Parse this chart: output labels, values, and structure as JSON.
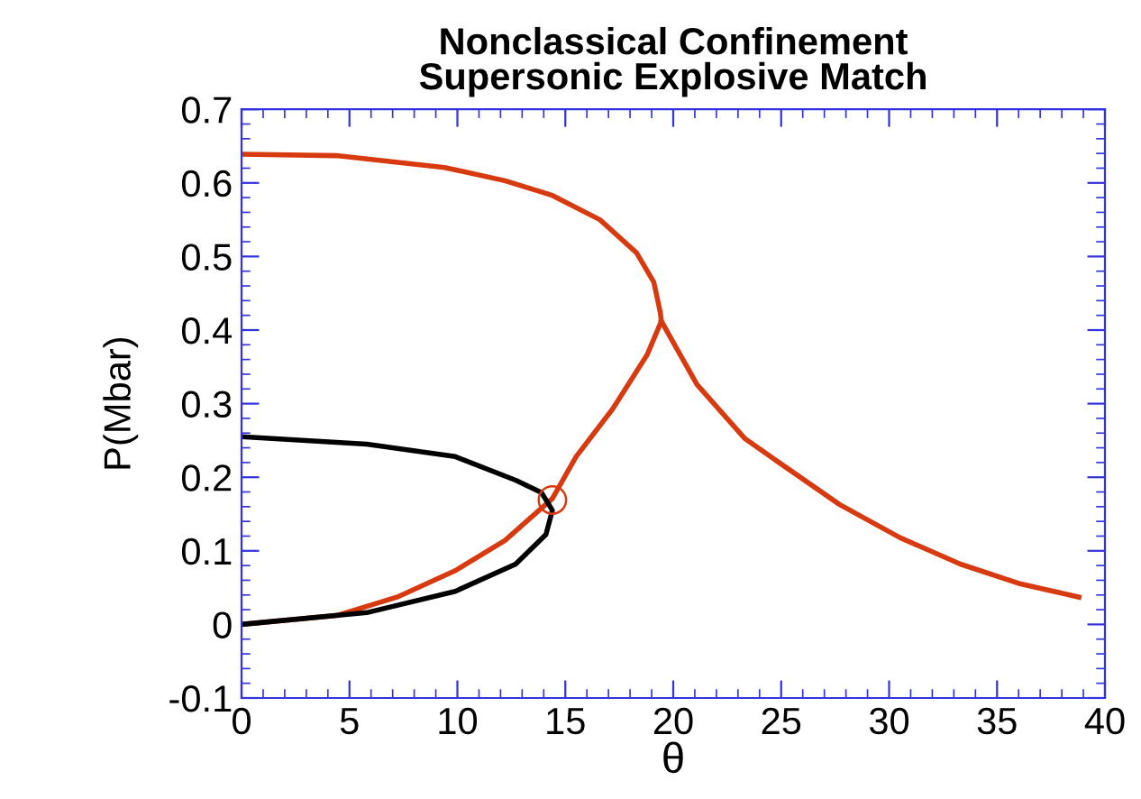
{
  "chart_data": {
    "type": "line",
    "title": "Nonclassical Confinement\nSupersonic Explosive Match",
    "xlabel": "θ",
    "ylabel": "P(Mbar)",
    "xlim": [
      0,
      40
    ],
    "xticks": [
      0,
      5,
      10,
      15,
      20,
      25,
      30,
      35,
      40
    ],
    "ylim": [
      -0.1,
      0.7
    ],
    "yticks": [
      -0.1,
      0,
      0.1,
      0.2,
      0.3,
      0.4,
      0.5,
      0.6,
      0.7
    ],
    "grid": false,
    "legend": false,
    "series": [
      {
        "color": "#d83a10",
        "x": [
          0,
          4.4,
          9.4,
          12.2,
          14.4,
          16.6,
          18.3,
          19.1,
          19.4,
          19.45,
          18.8,
          17.2,
          15.5,
          14.4,
          12.2,
          9.9,
          7.2,
          4.4,
          0
        ],
        "values": [
          0.639,
          0.637,
          0.621,
          0.603,
          0.583,
          0.55,
          0.505,
          0.465,
          0.424,
          0.412,
          0.367,
          0.293,
          0.228,
          0.171,
          0.114,
          0.073,
          0.037,
          0.012,
          0
        ]
      },
      {
        "color": "#d83a10",
        "x": [
          19.45,
          21.1,
          23.3,
          24.9,
          27.7,
          30.5,
          33.3,
          36.1,
          38.8
        ],
        "values": [
          0.412,
          0.326,
          0.253,
          0.22,
          0.163,
          0.118,
          0.082,
          0.055,
          0.037
        ]
      },
      {
        "color": "#000000",
        "x": [
          0,
          5.8,
          9.9,
          12.7,
          13.9,
          14.4,
          14.1,
          12.7,
          9.9,
          5.8,
          0
        ],
        "values": [
          0.255,
          0.245,
          0.228,
          0.196,
          0.179,
          0.155,
          0.122,
          0.082,
          0.045,
          0.016,
          0
        ]
      },
      {
        "type": "scatter",
        "marker": "circle",
        "color": "#d83a10",
        "x": [
          14.4
        ],
        "values": [
          0.169
        ]
      }
    ]
  }
}
